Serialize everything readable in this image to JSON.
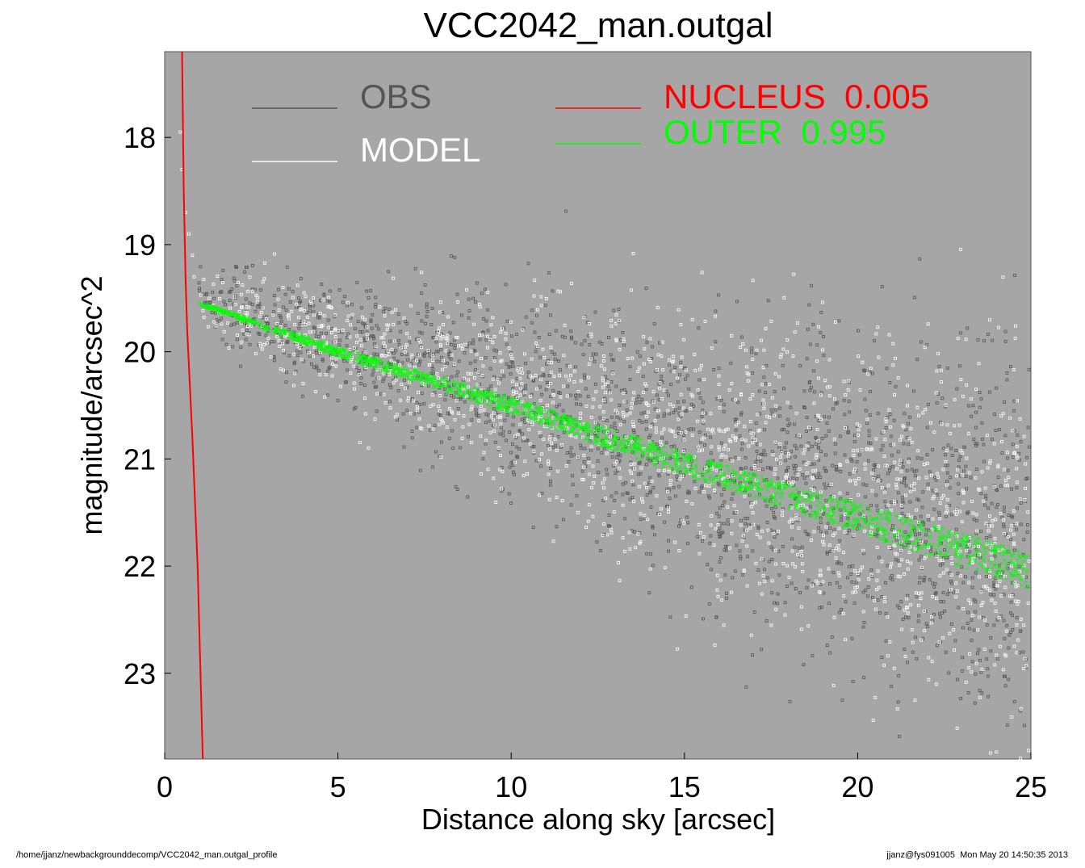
{
  "chart_data": {
    "type": "scatter",
    "title": "VCC2042_man.outgal",
    "xlabel": "Distance along sky [arcsec]",
    "ylabel": "magnitude/arcsec^2",
    "xlim": [
      0,
      25
    ],
    "ylim": [
      23.8,
      17.2
    ],
    "y_inverted": true,
    "x_ticks": [
      "0",
      "5",
      "10",
      "15",
      "20",
      "25"
    ],
    "y_ticks": [
      "18",
      "19",
      "20",
      "21",
      "22",
      "23"
    ],
    "background": "#a6a6a6",
    "grid": false,
    "legend": {
      "placement": "top",
      "entries": [
        {
          "label": "OBS",
          "color": "#555555"
        },
        {
          "label": "MODEL",
          "color": "#ffffff"
        },
        {
          "label": "NUCLEUS  0.005",
          "color": "#ff0000"
        },
        {
          "label": "OUTER  0.995",
          "color": "#00ff00"
        }
      ]
    },
    "series": [
      {
        "name": "OBS",
        "color": "#555555",
        "marker": "open-square",
        "description_points": [
          [
            0.5,
            18.0
          ],
          [
            1.0,
            19.5
          ],
          [
            5,
            19.9
          ],
          [
            10,
            20.4
          ],
          [
            15,
            20.9
          ],
          [
            20,
            21.4
          ],
          [
            25,
            21.8
          ]
        ],
        "scatter_sigma_mag": [
          [
            1,
            0.15
          ],
          [
            10,
            0.45
          ],
          [
            25,
            0.9
          ]
        ]
      },
      {
        "name": "MODEL",
        "color": "#ffffff",
        "marker": "open-square",
        "values": [
          [
            0.5,
            18.1
          ],
          [
            1.0,
            19.4
          ],
          [
            5,
            19.9
          ],
          [
            10,
            20.5
          ],
          [
            15,
            21.0
          ],
          [
            20,
            21.45
          ],
          [
            25,
            21.9
          ]
        ]
      },
      {
        "name": "NUCLEUS  0.005",
        "color": "#ff0000",
        "values": [
          [
            0.5,
            17.2
          ],
          [
            0.55,
            18.5
          ],
          [
            0.6,
            19.3
          ],
          [
            0.65,
            19.8
          ],
          [
            0.8,
            20.8
          ],
          [
            0.95,
            22.0
          ],
          [
            1.1,
            23.8
          ]
        ]
      },
      {
        "name": "OUTER  0.995",
        "color": "#00ff00",
        "values": [
          [
            1.0,
            19.55
          ],
          [
            5,
            20.0
          ],
          [
            10,
            20.5
          ],
          [
            15,
            21.05
          ],
          [
            20,
            21.55
          ],
          [
            25,
            22.05
          ]
        ],
        "band_halfwidth_mag": [
          [
            1,
            0.02
          ],
          [
            25,
            0.17
          ]
        ]
      }
    ]
  },
  "footer": {
    "left": "/home/jjanz/newbackgrounddecomp/VCC2042_man.outgal_profile",
    "right": "jjanz@fys091005  Mon May 20 14:50:35 2013"
  }
}
